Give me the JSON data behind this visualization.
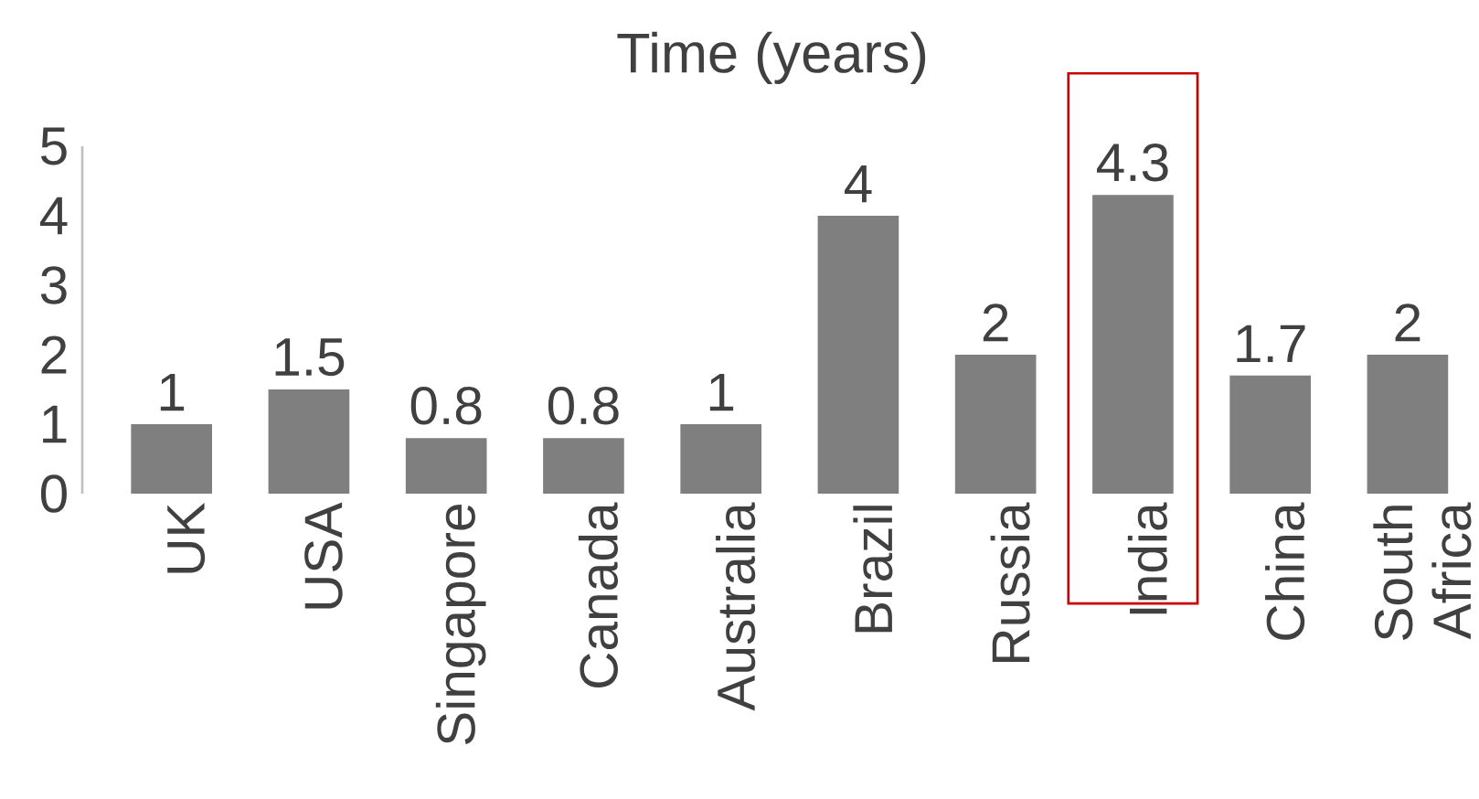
{
  "chart_data": {
    "type": "bar",
    "title": "Time (years)",
    "categories": [
      "UK",
      "USA",
      "Singapore",
      "Canada",
      "Australia",
      "Brazil",
      "Russia",
      "India",
      "China",
      "South Africa"
    ],
    "values": [
      1,
      1.5,
      0.8,
      0.8,
      1,
      4,
      2,
      4.3,
      1.7,
      2
    ],
    "color": "#7f7f7f",
    "ylim": [
      0,
      5
    ],
    "yticks": [
      0,
      1,
      2,
      3,
      4,
      5
    ],
    "data_labels": true
  }
}
